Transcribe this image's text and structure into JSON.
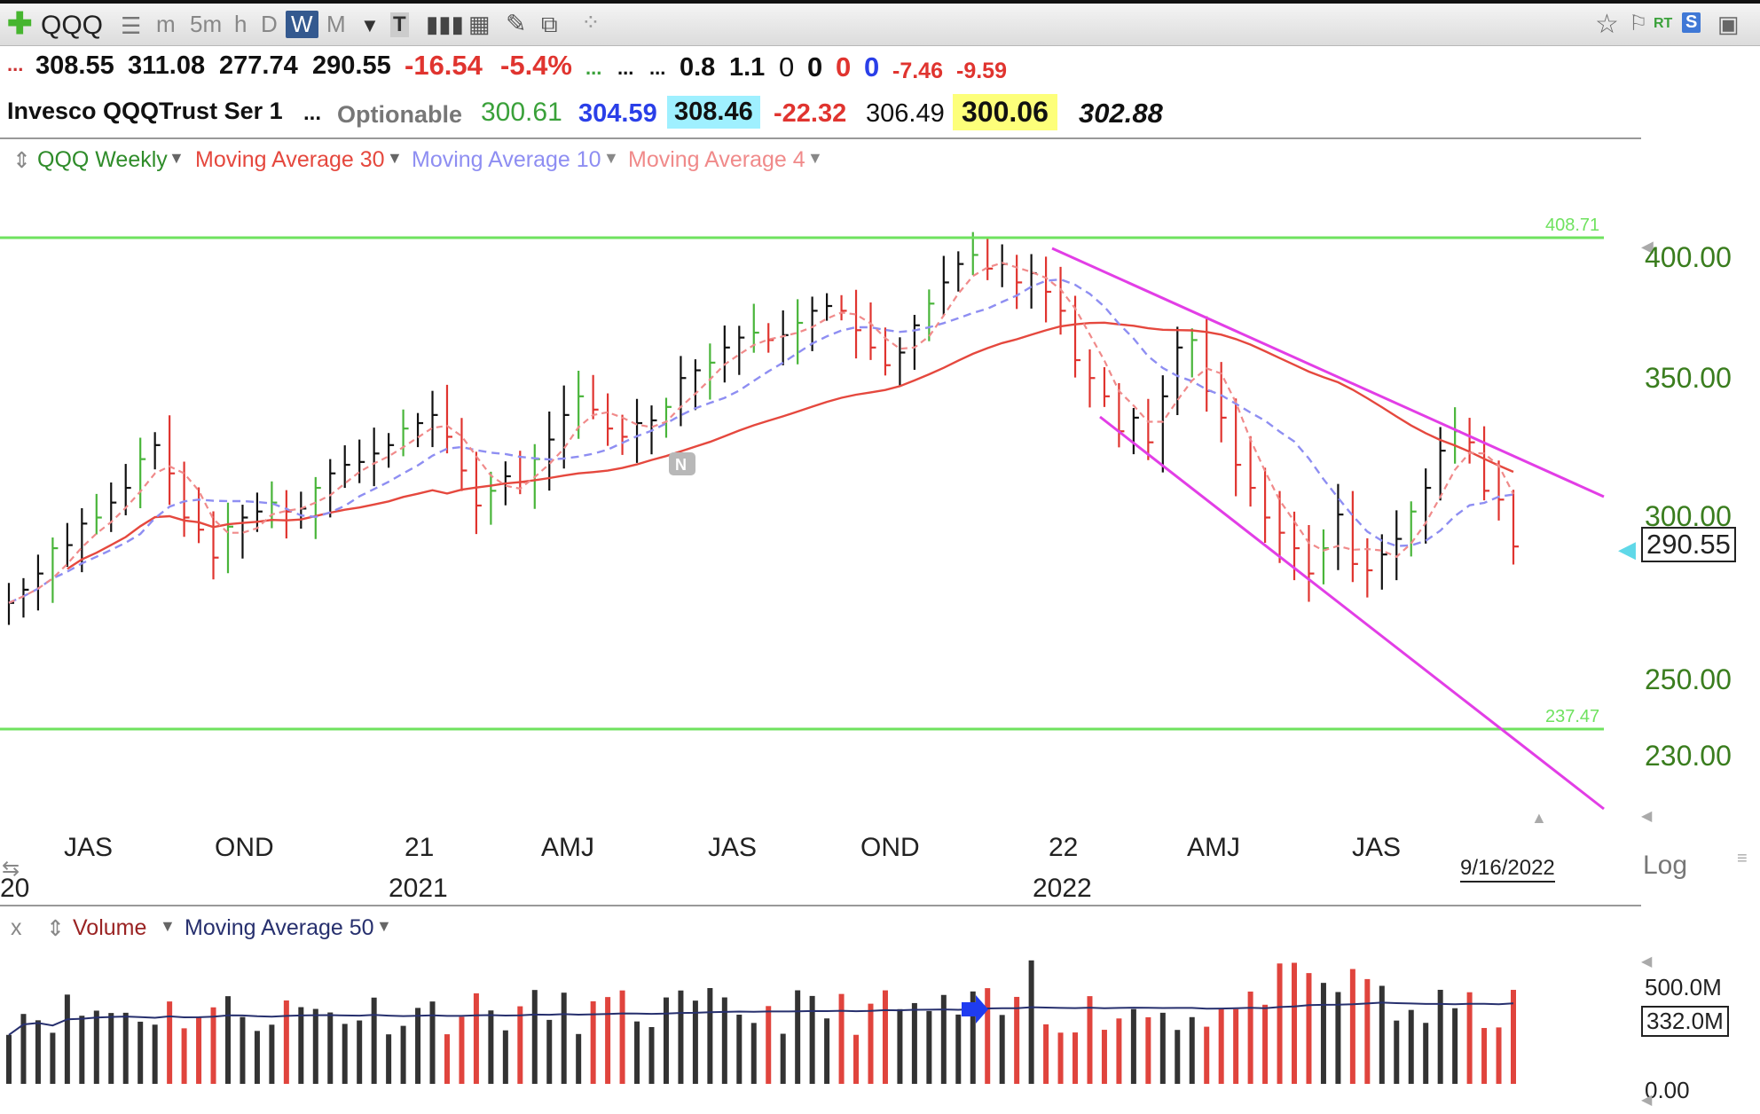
{
  "toolbar": {
    "symbol": "QQQ",
    "intervals": [
      "m",
      "5m",
      "h",
      "D",
      "W",
      "M"
    ],
    "active_interval": "W",
    "rt_label": "RT",
    "s_label": "S"
  },
  "quote_row1": {
    "dots": "...",
    "open": "308.55",
    "high": "311.08",
    "low": "277.74",
    "close": "290.55",
    "change": "-16.54",
    "change_pct": "-5.4%",
    "dots2": "...",
    "dots3": "...",
    "dots4": "...",
    "v1": "0.8",
    "v2": "1.1",
    "v3": "0",
    "v4": "0",
    "v5": "0",
    "v6": "0",
    "v7": "-7.46",
    "v8": "-9.59"
  },
  "quote_row2": {
    "name": "Invesco QQQTrust Ser 1",
    "dots": "...",
    "optionable": "Optionable",
    "p1": "300.61",
    "p2": "304.59",
    "p3": "308.46",
    "p4": "-22.32",
    "p5": "306.49",
    "p6": "300.06",
    "p7": "302.88"
  },
  "price_legend": {
    "series": "QQQ Weekly",
    "ma30": "Moving Average 30",
    "ma10": "Moving Average 10",
    "ma4": "Moving Average 4"
  },
  "price_axis": {
    "labels": [
      "400.00",
      "350.00",
      "300.00",
      "250.00",
      "230.00"
    ],
    "current": "290.55",
    "scale_label": "Log"
  },
  "hlines": {
    "upper": "408.71",
    "lower": "237.47"
  },
  "x_axis": {
    "quarters": [
      "JAS",
      "OND",
      "21",
      "AMJ",
      "JAS",
      "OND",
      "22",
      "AMJ",
      "JAS"
    ],
    "years": [
      "20",
      "2021",
      "2022"
    ],
    "current_date": "9/16/2022"
  },
  "earnings_marker": "N",
  "volume_legend": {
    "close": "x",
    "series": "Volume",
    "ma": "Moving Average 50"
  },
  "volume_axis": {
    "labels": [
      "500.0M",
      "0.00"
    ],
    "current": "332.0M"
  },
  "colors": {
    "up": "#49b53a",
    "down": "#e0342f",
    "flat": "#111111",
    "ma30": "#e5483e",
    "ma10": "#8e8ef2",
    "ma4": "#f08a8a",
    "channel": "#e23ee6",
    "hline": "#6fe25f",
    "vol_up": "#333333",
    "vol_down": "#e0443d",
    "vol_ma": "#27306e"
  },
  "chart_data": {
    "type": "line",
    "title": "QQQ Weekly",
    "x_start": "2020-07",
    "x_end": "2022-09-16",
    "y_scale": "log",
    "ylim": [
      220,
      412
    ],
    "closes": [
      273,
      277,
      282,
      290,
      291,
      298,
      300,
      305,
      310,
      320,
      325,
      315,
      300,
      296,
      287,
      297,
      300,
      302,
      305,
      302,
      303,
      310,
      315,
      318,
      319,
      322,
      325,
      331,
      333,
      336,
      328,
      316,
      304,
      309,
      314,
      312,
      320,
      327,
      336,
      343,
      338,
      331,
      328,
      333,
      334,
      339,
      350,
      353,
      356,
      362,
      366,
      368,
      365,
      367,
      372,
      377,
      379,
      377,
      369,
      362,
      355,
      360,
      371,
      380,
      389,
      397,
      401,
      395,
      397,
      389,
      393,
      385,
      377,
      357,
      350,
      343,
      330,
      335,
      326,
      343,
      362,
      365,
      345,
      335,
      318,
      310,
      300,
      295,
      290,
      282,
      290,
      301,
      285,
      283,
      288,
      293,
      302,
      310,
      323,
      330,
      326,
      309,
      306,
      290.55
    ],
    "ma30_end": 313,
    "ma10_end": 307,
    "ma4_end": 302,
    "volume_ma50_end_m": 332,
    "volume_peak_m": 580
  }
}
